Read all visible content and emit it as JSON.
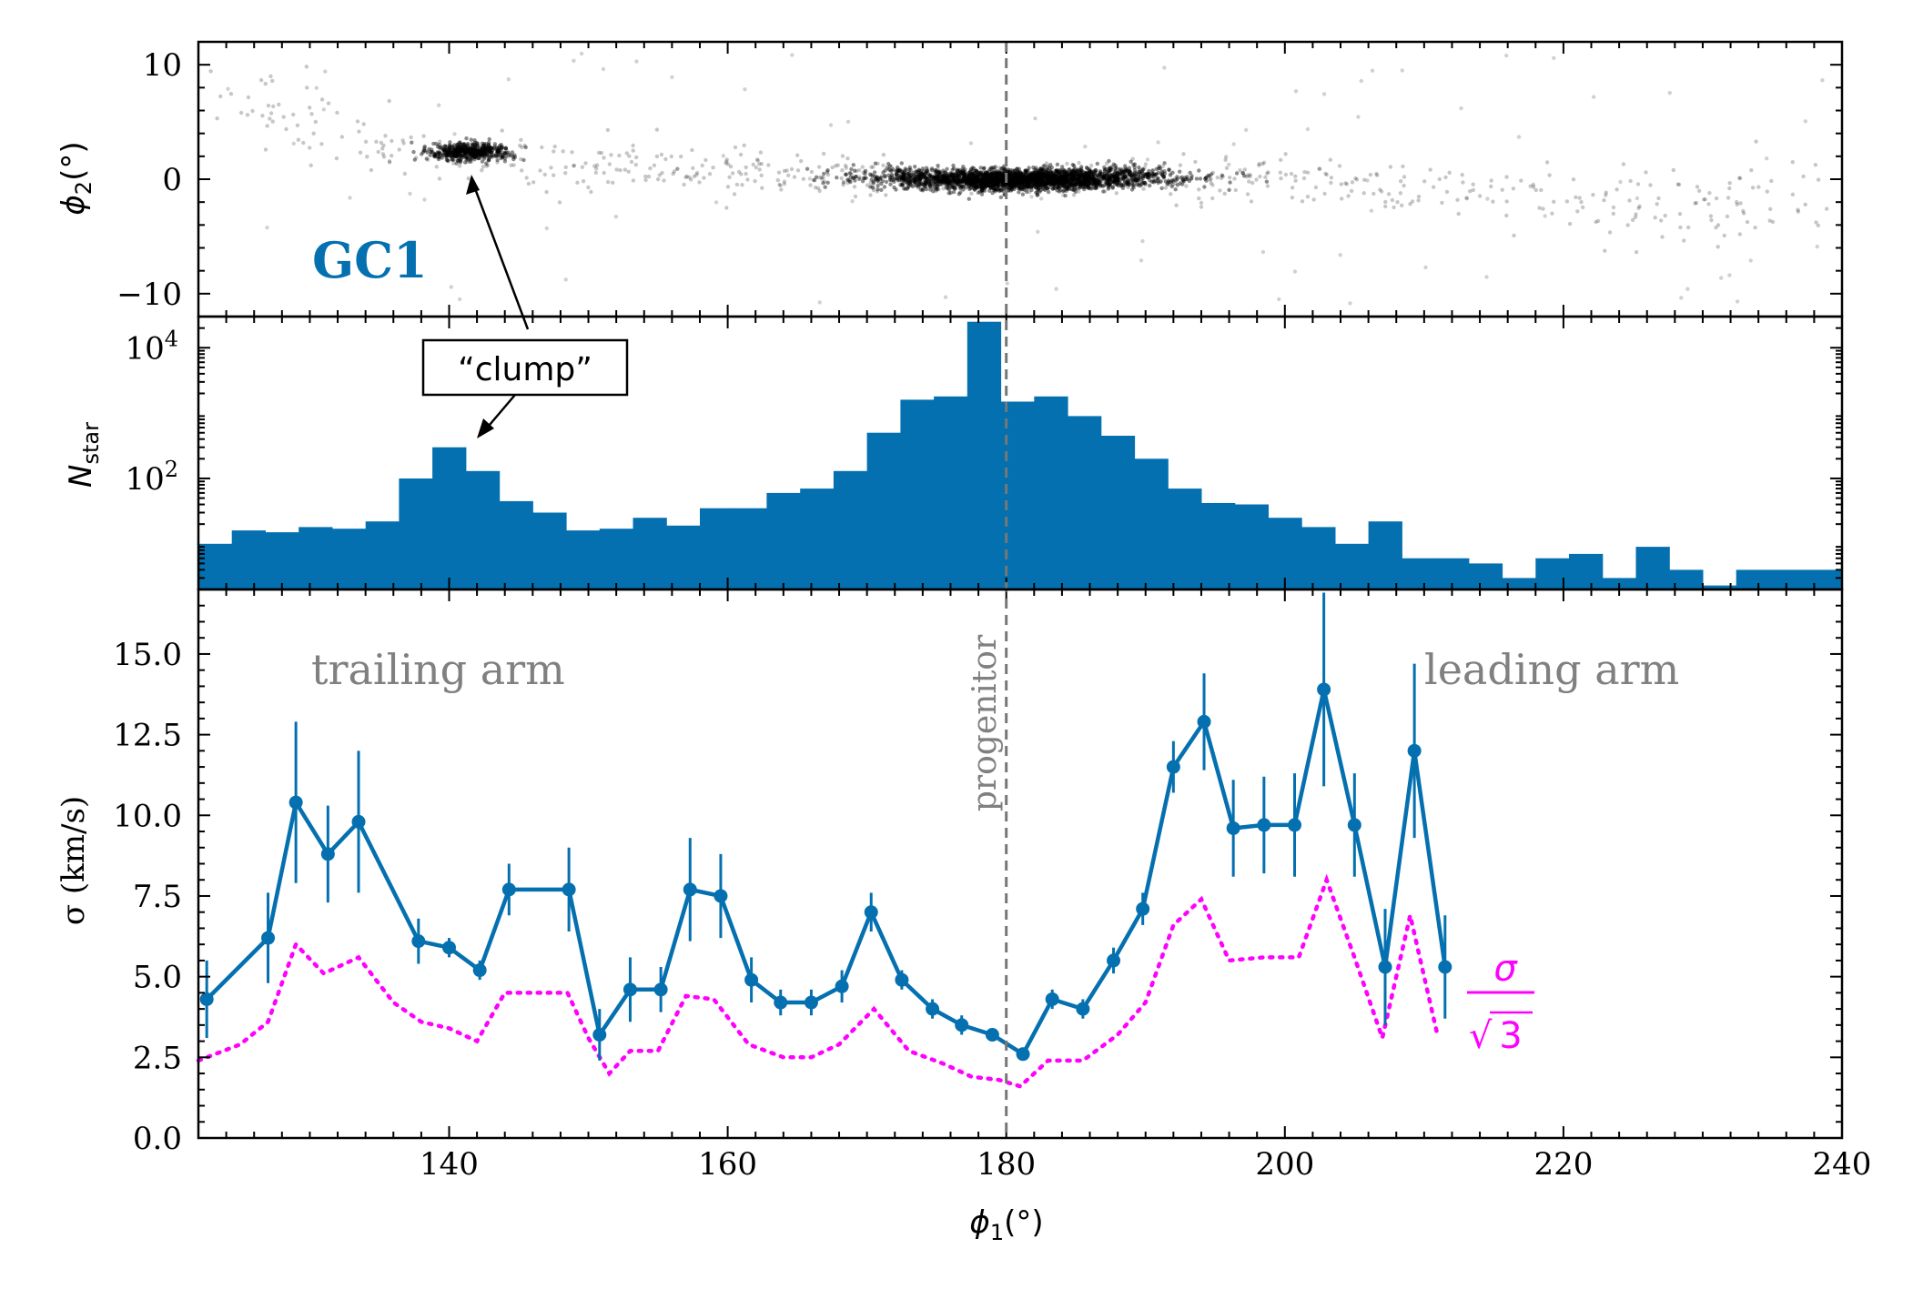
{
  "figure_label": "GC1",
  "chart_data": [
    {
      "type": "scatter",
      "panel": "top",
      "ylabel_symbol": "ϕ",
      "ylabel_sub": "2",
      "ylabel_unit": "(°)",
      "xlim": [
        122,
        240
      ],
      "ylim": [
        -12,
        12
      ],
      "yticks": [
        10,
        0,
        -10
      ],
      "ytick_labels": [
        "10",
        "0",
        "−10"
      ],
      "stream_track": {
        "x": [
          122,
          126,
          130,
          134,
          138,
          142,
          146,
          150,
          155,
          160,
          165,
          170,
          175,
          180,
          185,
          190,
          195,
          200,
          205,
          210,
          215,
          220,
          225,
          230,
          235,
          240
        ],
        "y": [
          7.0,
          5.8,
          4.6,
          3.4,
          2.6,
          2.0,
          1.6,
          1.3,
          1.0,
          0.7,
          0.4,
          0.2,
          0.0,
          -0.1,
          0.0,
          0.2,
          0.2,
          0.0,
          -0.4,
          -0.9,
          -1.4,
          -2.0,
          -2.6,
          -2.4,
          -1.8,
          -1.4
        ]
      },
      "dense_regions": [
        {
          "name": "clump",
          "x_range": [
            138,
            146
          ],
          "y_center": 2.4
        },
        {
          "name": "progenitor",
          "x_range": [
            168,
            196
          ],
          "y_center": 0.0
        }
      ],
      "annotation": {
        "text": "“clump”",
        "target_x": 142,
        "target_y": 0.5
      }
    },
    {
      "type": "bar",
      "panel": "middle",
      "ylabel_symbol": "N",
      "ylabel_sub": "star",
      "yscale": "log",
      "ylim": [
        2,
        30000
      ],
      "yticks": [
        100,
        10000
      ],
      "ytick_base": "10",
      "ytick_exponents": [
        "2",
        "4"
      ],
      "bin_edges": [
        122,
        124.4,
        126.8,
        129.2,
        131.6,
        134.0,
        136.4,
        138.8,
        141.2,
        143.6,
        146.0,
        148.4,
        150.8,
        153.2,
        155.6,
        158.0,
        160.4,
        162.8,
        165.2,
        167.6,
        170.0,
        172.4,
        174.8,
        177.2,
        179.6,
        182.0,
        184.4,
        186.8,
        189.2,
        191.6,
        194.0,
        196.4,
        198.8,
        201.2,
        203.6,
        206.0,
        208.4,
        210.8,
        213.2,
        215.6,
        218.0,
        220.4,
        222.8,
        225.2,
        227.6,
        230.0,
        232.4,
        234.8,
        237.2,
        240.0
      ],
      "counts": [
        10,
        16,
        15,
        18,
        17,
        22,
        100,
        300,
        130,
        45,
        30,
        16,
        17,
        25,
        19,
        35,
        35,
        60,
        70,
        130,
        500,
        1600,
        1800,
        25000,
        1500,
        1800,
        900,
        450,
        200,
        70,
        42,
        40,
        25,
        18,
        10,
        22,
        6,
        6,
        5,
        3,
        6,
        7,
        3,
        9,
        4,
        2.3,
        4,
        4,
        4
      ],
      "annotation": {
        "text": "“clump”",
        "target_x": 142,
        "target_y": 300
      }
    },
    {
      "type": "line",
      "panel": "bottom",
      "xlabel_symbol": "ϕ",
      "xlabel_sub": "1",
      "xlabel_unit": "(°)",
      "ylabel": "σ (km/s)",
      "xlim": [
        122,
        240
      ],
      "ylim": [
        0,
        17
      ],
      "xticks": [
        140,
        160,
        180,
        200,
        220,
        240
      ],
      "xtick_labels": [
        "140",
        "160",
        "180",
        "200",
        "220",
        "240"
      ],
      "yticks": [
        0,
        2.5,
        5,
        7.5,
        10,
        12.5,
        15
      ],
      "ytick_labels": [
        "0.0",
        "2.5",
        "5.0",
        "7.5",
        "10.0",
        "12.5",
        "15.0"
      ],
      "series": [
        {
          "name": "σ",
          "color": "#0570b0",
          "x": [
            122.6,
            127.0,
            129.0,
            131.3,
            133.5,
            137.8,
            140.0,
            142.2,
            144.3,
            148.6,
            150.8,
            153.0,
            155.2,
            157.3,
            159.5,
            161.7,
            163.8,
            166.0,
            168.2,
            170.3,
            172.5,
            174.7,
            176.8,
            179.0,
            181.2,
            183.3,
            185.5,
            187.7,
            189.8,
            192.0,
            194.2,
            196.3,
            198.5,
            200.7,
            202.8,
            205.0,
            207.2,
            209.3,
            211.5
          ],
          "y": [
            4.3,
            6.2,
            10.4,
            8.8,
            9.8,
            6.1,
            5.9,
            5.2,
            7.7,
            7.7,
            3.2,
            4.6,
            4.6,
            7.7,
            7.5,
            4.9,
            4.2,
            4.2,
            4.7,
            7.0,
            4.9,
            4.0,
            3.5,
            3.2,
            2.6,
            4.3,
            4.0,
            5.5,
            7.1,
            11.5,
            12.9,
            9.6,
            9.7,
            9.7,
            13.9,
            9.7,
            5.3,
            12.0,
            5.3
          ],
          "yerr": [
            1.2,
            1.4,
            2.5,
            1.5,
            2.2,
            0.7,
            0.3,
            0.3,
            0.8,
            1.3,
            0.8,
            1.0,
            0.7,
            1.6,
            1.3,
            0.7,
            0.4,
            0.4,
            0.5,
            0.6,
            0.3,
            0.3,
            0.3,
            0.2,
            0.2,
            0.3,
            0.3,
            0.4,
            0.5,
            0.8,
            1.5,
            1.5,
            1.5,
            1.6,
            3.0,
            1.6,
            1.8,
            2.7,
            1.6
          ]
        },
        {
          "name": "σ/√3",
          "color": "#ff00ff",
          "style": "dotted",
          "x": [
            122,
            125,
            127,
            129,
            131,
            133.5,
            136,
            138,
            140,
            142,
            144,
            146,
            148.5,
            150,
            151.5,
            153,
            155,
            157,
            159,
            161.5,
            164,
            166,
            168,
            170.5,
            173,
            175.5,
            177.5,
            179.5,
            181,
            183,
            185.5,
            188,
            190,
            192,
            194,
            196,
            198.5,
            201,
            203,
            205,
            207,
            209,
            211
          ],
          "y": [
            2.4,
            2.9,
            3.6,
            6.0,
            5.1,
            5.6,
            4.2,
            3.6,
            3.4,
            3.0,
            4.5,
            4.5,
            4.5,
            3.1,
            2.0,
            2.7,
            2.7,
            4.4,
            4.3,
            2.9,
            2.5,
            2.5,
            2.9,
            4.0,
            2.7,
            2.3,
            1.9,
            1.8,
            1.6,
            2.4,
            2.4,
            3.2,
            4.2,
            6.6,
            7.4,
            5.5,
            5.6,
            5.6,
            8.0,
            5.6,
            3.1,
            6.9,
            3.1
          ]
        }
      ],
      "sigma_label": {
        "numerator": "σ",
        "radical": "√",
        "denominator": "3"
      },
      "region_labels": {
        "trailing": "trailing arm",
        "leading": "leading arm",
        "progenitor": "progenitor"
      },
      "progenitor_x": 180
    }
  ],
  "colors": {
    "blue": "#0570b0",
    "magenta": "#ff00ff",
    "gray": "#808080",
    "dashed": "#777777"
  }
}
